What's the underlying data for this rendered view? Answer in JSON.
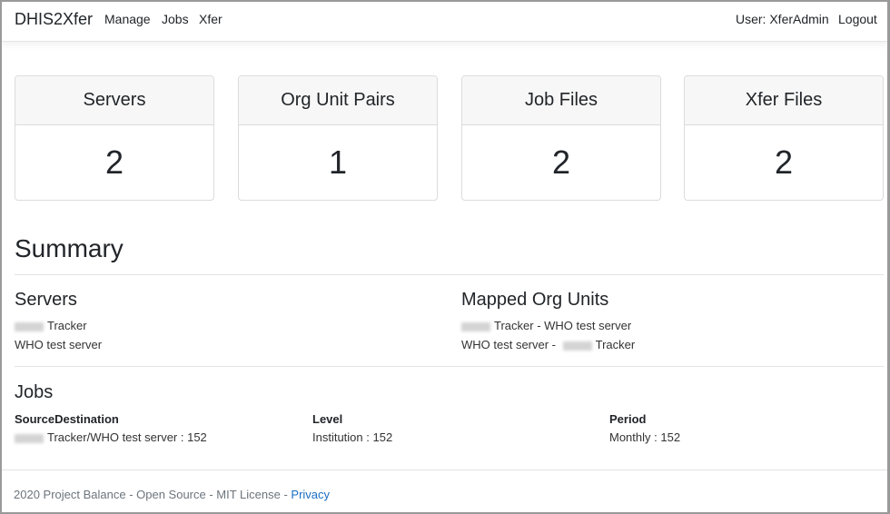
{
  "nav": {
    "brand": "DHIS2Xfer",
    "links": [
      "Manage",
      "Jobs",
      "Xfer"
    ],
    "user": "User: XferAdmin",
    "logout": "Logout"
  },
  "cards": [
    {
      "title": "Servers",
      "value": "2"
    },
    {
      "title": "Org Unit Pairs",
      "value": "1"
    },
    {
      "title": "Job Files",
      "value": "2"
    },
    {
      "title": "Xfer Files",
      "value": "2"
    }
  ],
  "summary": {
    "title": "Summary",
    "servers": {
      "title": "Servers",
      "items": [
        "Tracker",
        "WHO test server"
      ]
    },
    "mapped": {
      "title": "Mapped Org Units",
      "items": [
        "Tracker - WHO test server",
        "WHO test server - ",
        "Tracker"
      ]
    },
    "jobs": {
      "title": "Jobs",
      "columns": [
        {
          "header": "SourceDestination",
          "value": "Tracker/WHO test server : 152"
        },
        {
          "header": "Level",
          "value": "Institution : 152"
        },
        {
          "header": "Period",
          "value": "Monthly : 152"
        }
      ]
    }
  },
  "footer": {
    "text": "2020 Project Balance - Open Source - MIT License - ",
    "privacy": "Privacy"
  }
}
